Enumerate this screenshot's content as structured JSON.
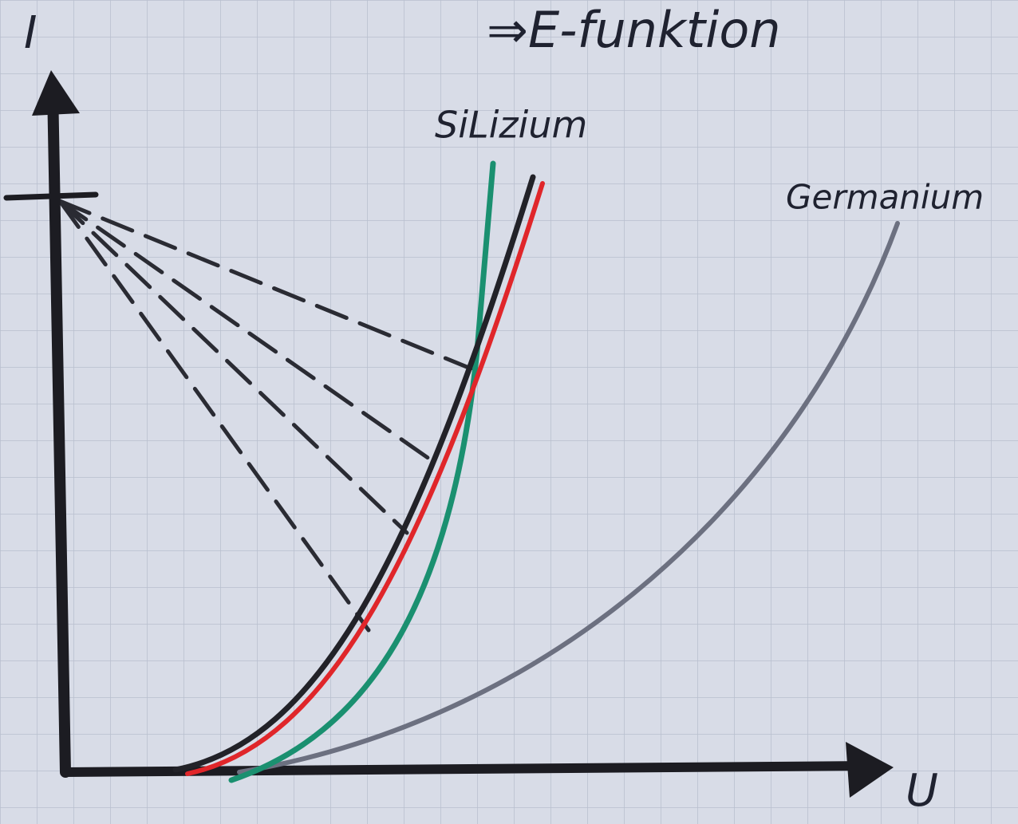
{
  "labels": {
    "y_axis": "I",
    "headline": "⇒E-funktion",
    "silicon": "SiLizium",
    "germanium": "Germanium",
    "x_axis": "U"
  }
}
